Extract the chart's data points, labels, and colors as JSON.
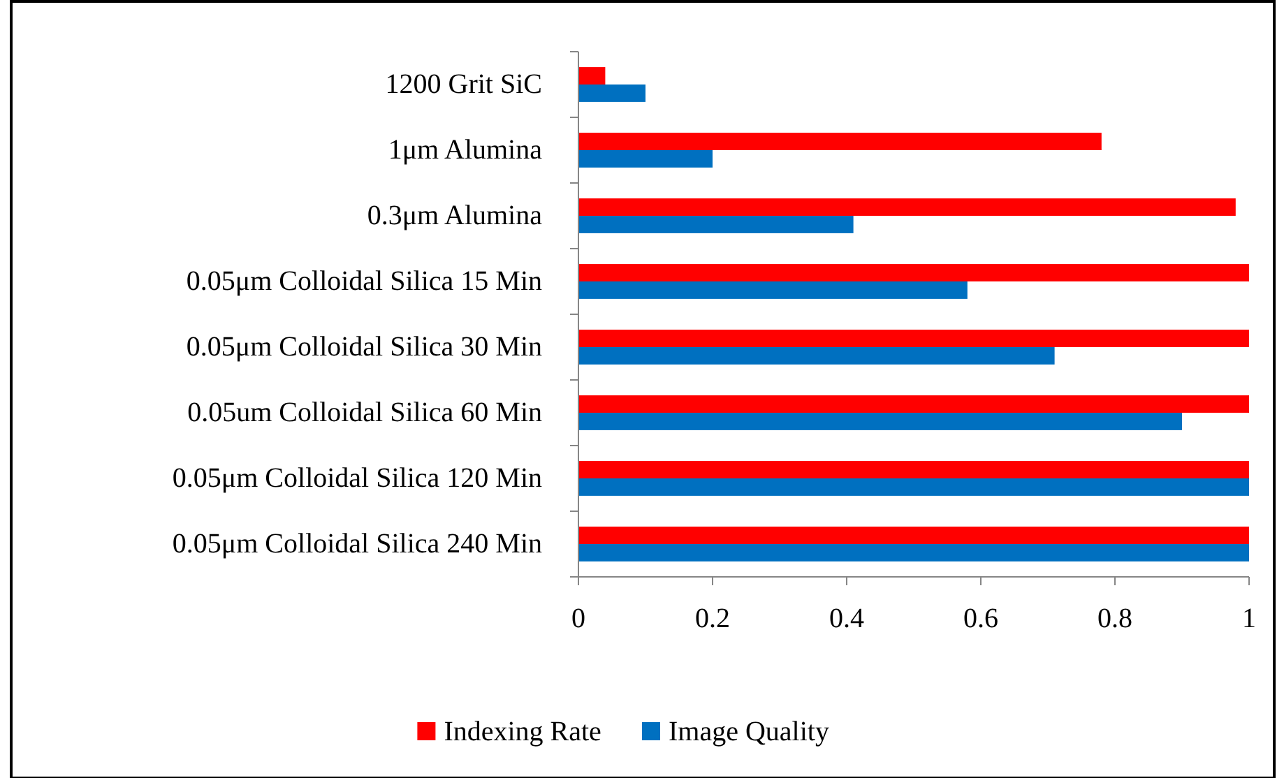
{
  "chart_data": {
    "type": "bar",
    "orientation": "horizontal",
    "categories": [
      "1200 Grit SiC",
      "1μm Alumina",
      "0.3μm Alumina",
      "0.05μm Colloidal Silica 15 Min",
      "0.05μm Colloidal Silica 30 Min",
      "0.05um Colloidal Silica 60 Min",
      "0.05μm Colloidal Silica 120 Min",
      "0.05μm Colloidal Silica 240 Min"
    ],
    "series": [
      {
        "name": "Indexing Rate",
        "color": "#ff0000",
        "values": [
          0.04,
          0.78,
          0.98,
          1.0,
          1.0,
          1.0,
          1.0,
          1.0
        ]
      },
      {
        "name": "Image Quality",
        "color": "#0070c0",
        "values": [
          0.1,
          0.2,
          0.41,
          0.58,
          0.71,
          0.9,
          1.0,
          1.0
        ]
      }
    ],
    "xlim": [
      0,
      1
    ],
    "xticks": [
      0,
      0.2,
      0.4,
      0.6,
      0.8,
      1
    ],
    "grid": false,
    "legend": "bottom"
  }
}
